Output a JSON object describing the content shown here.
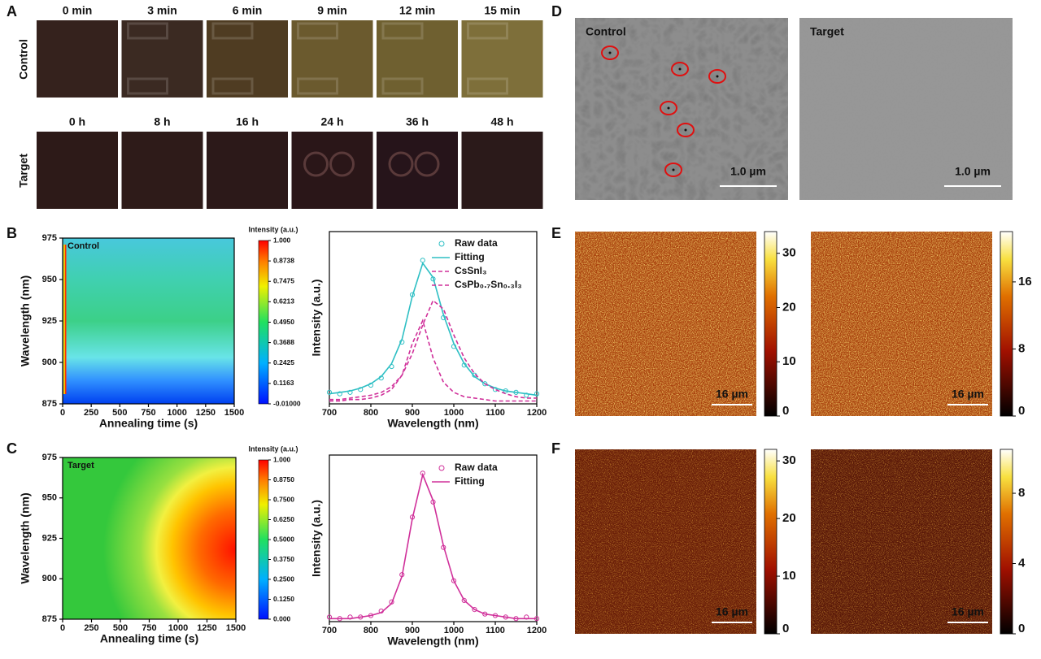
{
  "panel_labels": [
    "A",
    "B",
    "C",
    "D",
    "E",
    "F"
  ],
  "photos": {
    "rows": [
      {
        "label": "Control",
        "times": [
          "0 min",
          "3 min",
          "6 min",
          "9 min",
          "12 min",
          "15 min"
        ]
      },
      {
        "label": "Target",
        "times": [
          "0 h",
          "8 h",
          "16 h",
          "24 h",
          "36 h",
          "48 h"
        ]
      }
    ]
  },
  "chart_data": [
    {
      "type": "heatmap",
      "annotation": "Control",
      "xlabel": "Annealing time (s)",
      "ylabel": "Wavelength (nm)",
      "xlim": [
        0,
        1500
      ],
      "ylim": [
        875,
        975
      ],
      "xticks": [
        0,
        250,
        500,
        750,
        1000,
        1250,
        1500
      ],
      "yticks": [
        875,
        900,
        925,
        950,
        975
      ],
      "colorbar": {
        "title": "Intensity (a.u.)",
        "lim": [
          -0.01,
          1
        ],
        "ticks": [
          {
            "value": -0.01,
            "label": "-0.01000"
          },
          0.1163,
          0.2425,
          0.3688,
          {
            "value": 0.495,
            "label": "0.4950"
          },
          0.6213,
          0.7475,
          0.8738,
          {
            "value": 1,
            "label": "1.000"
          }
        ]
      }
    },
    {
      "type": "line",
      "xlabel": "Wavelength (nm)",
      "ylabel": "Intensity (a.u.)",
      "xlim": [
        700,
        1200
      ],
      "xticks": [
        700,
        800,
        900,
        1000,
        1100,
        1200
      ],
      "ylim": [
        0,
        1.2
      ],
      "x": [
        700,
        725,
        750,
        775,
        800,
        825,
        850,
        875,
        900,
        925,
        950,
        975,
        1000,
        1025,
        1050,
        1075,
        1100,
        1125,
        1150,
        1175,
        1200
      ],
      "series": [
        {
          "name": "Raw data",
          "color": "#2ebfc4",
          "marker": "circle",
          "values": [
            0.08,
            0.07,
            0.08,
            0.1,
            0.13,
            0.18,
            0.26,
            0.43,
            0.76,
            1.0,
            0.87,
            0.6,
            0.4,
            0.27,
            0.2,
            0.14,
            0.1,
            0.09,
            0.08,
            0.06,
            0.07
          ]
        },
        {
          "name": "Fitting",
          "color": "#2ebfc4",
          "style": "solid",
          "values": [
            0.07,
            0.08,
            0.09,
            0.11,
            0.14,
            0.19,
            0.28,
            0.45,
            0.75,
            0.98,
            0.88,
            0.62,
            0.42,
            0.28,
            0.19,
            0.14,
            0.11,
            0.09,
            0.08,
            0.07,
            0.06
          ]
        },
        {
          "name": "CsSnI₃",
          "color": "#d0309a",
          "style": "dashed",
          "values": [
            0.02,
            0.02,
            0.03,
            0.03,
            0.04,
            0.06,
            0.1,
            0.2,
            0.42,
            0.58,
            0.32,
            0.15,
            0.08,
            0.05,
            0.04,
            0.03,
            0.02,
            0.02,
            0.02,
            0.02,
            0.02
          ]
        },
        {
          "name": "CsPb₀.₇Sn₀.₃I₃",
          "color": "#d0309a",
          "style": "dashed",
          "values": [
            0.03,
            0.03,
            0.04,
            0.05,
            0.06,
            0.08,
            0.12,
            0.2,
            0.35,
            0.55,
            0.72,
            0.66,
            0.48,
            0.32,
            0.21,
            0.14,
            0.1,
            0.07,
            0.05,
            0.04,
            0.04
          ]
        }
      ]
    },
    {
      "type": "heatmap",
      "annotation": "Target",
      "xlabel": "Annealing time (s)",
      "ylabel": "Wavelength (nm)",
      "xlim": [
        0,
        1500
      ],
      "ylim": [
        875,
        975
      ],
      "xticks": [
        0,
        250,
        500,
        750,
        1000,
        1250,
        1500
      ],
      "yticks": [
        875,
        900,
        925,
        950,
        975
      ],
      "colorbar": {
        "title": "Intensity (a.u.)",
        "lim": [
          0,
          1
        ],
        "ticks": [
          {
            "value": 0,
            "label": "0.000"
          },
          {
            "value": 0.125,
            "label": "0.1250"
          },
          {
            "value": 0.25,
            "label": "0.2500"
          },
          {
            "value": 0.375,
            "label": "0.3750"
          },
          {
            "value": 0.5,
            "label": "0.5000"
          },
          {
            "value": 0.625,
            "label": "0.6250"
          },
          {
            "value": 0.75,
            "label": "0.7500"
          },
          {
            "value": 0.875,
            "label": "0.8750"
          },
          {
            "value": 1,
            "label": "1.000"
          }
        ]
      }
    },
    {
      "type": "line",
      "xlabel": "Wavelength (nm)",
      "ylabel": "Intensity (a.u.)",
      "xlim": [
        700,
        1200
      ],
      "xticks": [
        700,
        800,
        900,
        1000,
        1100,
        1200
      ],
      "ylim": [
        0,
        1.1
      ],
      "x": [
        700,
        725,
        750,
        775,
        800,
        825,
        850,
        875,
        900,
        925,
        950,
        975,
        1000,
        1025,
        1050,
        1075,
        1100,
        1125,
        1150,
        1175,
        1200
      ],
      "series": [
        {
          "name": "Raw data",
          "color": "#d0309a",
          "marker": "circle",
          "values": [
            0.03,
            0.02,
            0.03,
            0.03,
            0.04,
            0.07,
            0.13,
            0.31,
            0.69,
            0.98,
            0.79,
            0.49,
            0.27,
            0.14,
            0.08,
            0.05,
            0.04,
            0.03,
            0.02,
            0.03,
            0.02
          ]
        },
        {
          "name": "Fitting",
          "color": "#d0309a",
          "style": "solid",
          "values": [
            0.02,
            0.02,
            0.02,
            0.03,
            0.04,
            0.06,
            0.12,
            0.3,
            0.68,
            0.97,
            0.8,
            0.5,
            0.27,
            0.14,
            0.08,
            0.05,
            0.04,
            0.03,
            0.02,
            0.02,
            0.02
          ]
        }
      ]
    }
  ],
  "sem": [
    {
      "label": "Control",
      "scale_bar": "1.0 µm"
    },
    {
      "label": "Target",
      "scale_bar": "1.0 µm"
    }
  ],
  "maps": [
    {
      "scale_bar": "16 µm",
      "colorbar": {
        "lim": [
          0,
          34
        ],
        "ticks": [
          0,
          10,
          20,
          30
        ]
      }
    },
    {
      "scale_bar": "16 µm",
      "colorbar": {
        "lim": [
          0,
          22
        ],
        "ticks": [
          0,
          8,
          16
        ]
      }
    },
    {
      "scale_bar": "16 µm",
      "colorbar": {
        "lim": [
          0,
          32
        ],
        "ticks": [
          0,
          10,
          20,
          30
        ]
      }
    },
    {
      "scale_bar": "16 µm",
      "colorbar": {
        "lim": [
          0,
          10.5
        ],
        "ticks": [
          0,
          4,
          8
        ]
      }
    }
  ]
}
